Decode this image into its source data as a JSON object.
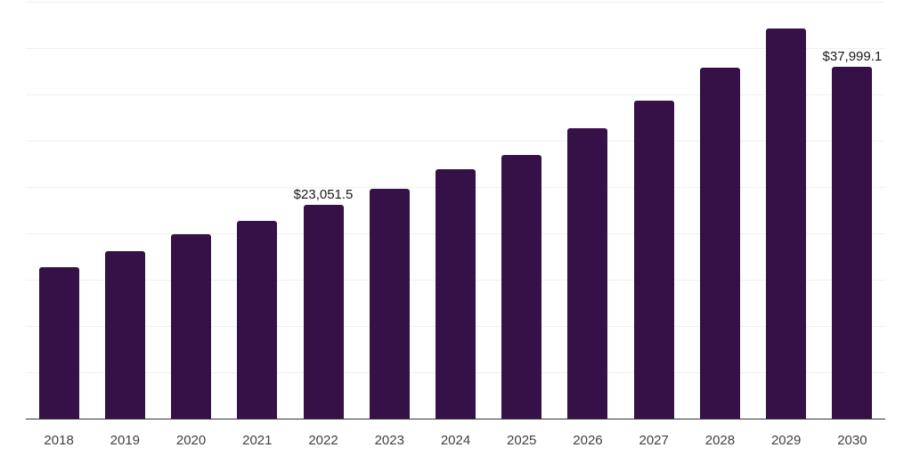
{
  "chart_data": {
    "type": "bar",
    "title": "",
    "xlabel": "",
    "ylabel": "",
    "categories": [
      "2018",
      "2019",
      "2020",
      "2021",
      "2022",
      "2023",
      "2024",
      "2025",
      "2026",
      "2027",
      "2028",
      "2029",
      "2030"
    ],
    "values": [
      16300,
      18100,
      19950,
      21350,
      23051.5,
      24800,
      26900,
      28450,
      31300,
      34350,
      37900,
      42100,
      37999.1
    ],
    "data_labels": [
      {
        "category": "2022",
        "text": "$23,051.5"
      },
      {
        "category": "2030",
        "text": "$37,999.1"
      }
    ],
    "ylim": [
      0,
      45000
    ],
    "gridline_step": 5000,
    "grid": true,
    "legend_position": "none",
    "y_tick_labels_shown": false,
    "colors": {
      "bar": "#351148",
      "axis": "#333333",
      "gridline": "#f0f0f0",
      "tick_label": "#404040",
      "data_label": "#1a1a1a",
      "background": "#ffffff"
    }
  }
}
